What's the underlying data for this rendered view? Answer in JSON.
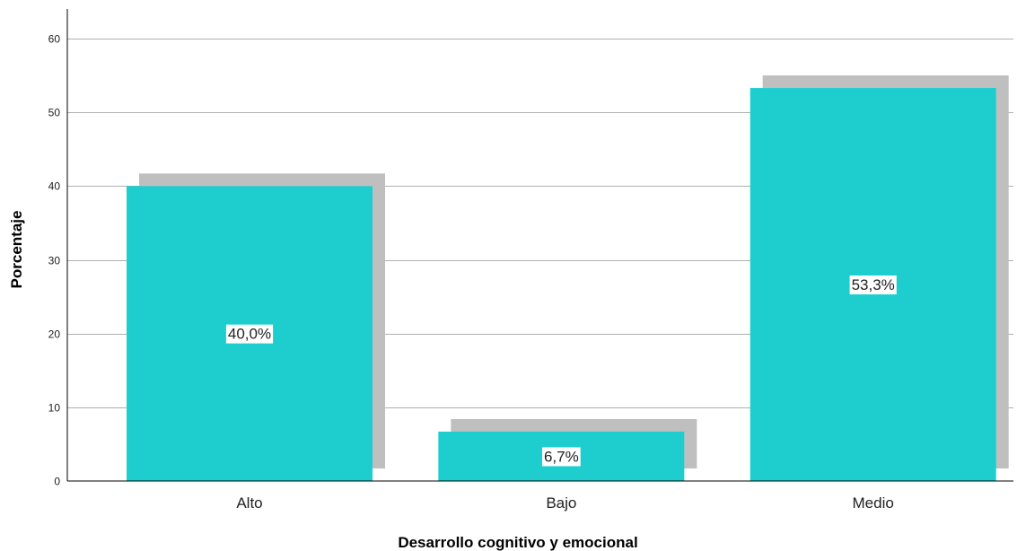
{
  "chart_data": {
    "type": "bar",
    "categories": [
      "Alto",
      "Bajo",
      "Medio"
    ],
    "values": [
      40.0,
      6.7,
      53.3
    ],
    "data_labels": [
      "40,0%",
      "6,7%",
      "53,3%"
    ],
    "xlabel": "Desarrollo cognitivo y emocional",
    "ylabel": "Porcentaje",
    "ylim": [
      0,
      60
    ],
    "yticks": [
      0,
      10,
      20,
      30,
      40,
      50,
      60
    ],
    "grid": true,
    "shadow": true,
    "colors": {
      "bar": "#1ecece",
      "shadow": "#bfbfbf",
      "grid": "#b0b0b0",
      "axis": "#000000"
    }
  }
}
